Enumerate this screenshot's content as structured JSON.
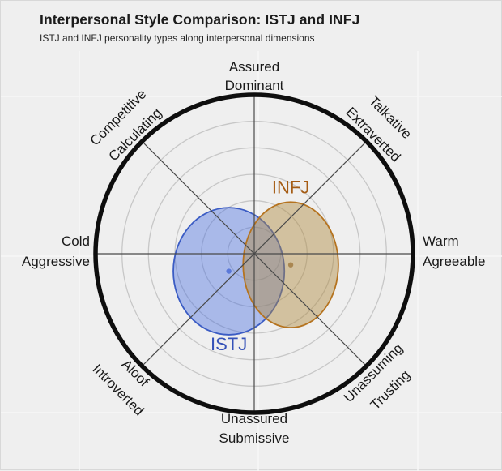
{
  "header": {
    "title": "Interpersonal Style Comparison: ISTJ and INFJ",
    "subtitle": "ISTJ and INFJ personality types along interpersonal dimensions"
  },
  "chart_data": {
    "type": "circumplex_ellipse",
    "title": "Interpersonal Style Comparison: ISTJ and INFJ",
    "subtitle": "ISTJ and INFJ personality types along interpersonal dimensions",
    "axes": {
      "horizontal": "Coldness to Warmth",
      "vertical": "Submissiveness to Dominance",
      "range": [
        -1,
        1
      ],
      "grid": "concentric rings with 8 radial spokes"
    },
    "grid_rings": 6,
    "octants": {
      "top": {
        "line1": "Assured",
        "line2": "Dominant"
      },
      "top_right": {
        "line1": "Talkative",
        "line2": "Extraverted"
      },
      "right": {
        "line1": "Warm",
        "line2": "Agreeable"
      },
      "bottom_right": {
        "line1": "Unassuming",
        "line2": "Trusting"
      },
      "bottom": {
        "line1": "Unassured",
        "line2": "Submissive"
      },
      "bottom_left": {
        "line1": "Aloof",
        "line2": "Introverted"
      },
      "left": {
        "line1": "Cold",
        "line2": "Aggressive"
      },
      "top_left": {
        "line1": "Competitive",
        "line2": "Calculating"
      }
    },
    "series": [
      {
        "name": "ISTJ",
        "warmth": -0.16,
        "dominance": -0.11,
        "radius_x": 0.35,
        "radius_y": 0.4,
        "stroke": "#3b5cc4",
        "fill": "rgba(65,105,225,0.40)",
        "dot_color": "#5b79d9",
        "label_color": "#3552b8",
        "label_position": "below"
      },
      {
        "name": "INFJ",
        "warmth": 0.23,
        "dominance": -0.07,
        "radius_x": 0.3,
        "radius_y": 0.395,
        "stroke": "#b5731f",
        "fill": "rgba(176,138,62,0.45)",
        "dot_color": "#aa8751",
        "label_color": "#a55c14",
        "label_position": "above"
      }
    ]
  }
}
